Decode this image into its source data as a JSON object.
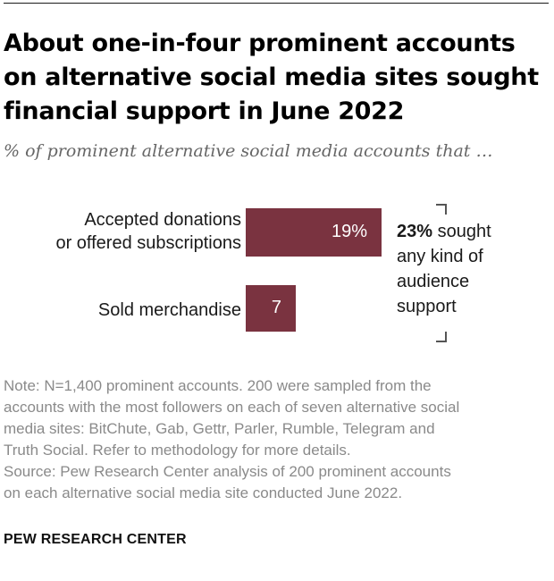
{
  "header": {
    "title": "About one-in-four prominent accounts on alternative social media sites sought financial support in June 2022",
    "subtitle": "% of prominent alternative social media accounts that …"
  },
  "chart_data": {
    "type": "bar",
    "orientation": "horizontal",
    "categories": [
      "Accepted donations or offered subscriptions",
      "Sold merchandise"
    ],
    "category_lines": [
      [
        "Accepted donations",
        "or offered subscriptions"
      ],
      [
        "Sold merchandise"
      ]
    ],
    "values": [
      19,
      7
    ],
    "value_labels": [
      "19%",
      "7"
    ],
    "xlim": [
      0,
      19
    ],
    "color": "#7a3340",
    "annotation": {
      "bold": "23%",
      "text_lines": [
        " sought",
        "any kind of",
        "audience",
        "support"
      ]
    }
  },
  "footer": {
    "note_lines": [
      "Note: N=1,400 prominent accounts. 200 were sampled from the",
      "accounts with the most followers on each of seven alternative social",
      "media sites: BitChute, Gab, Gettr, Parler, Rumble, Telegram and",
      "Truth Social. Refer to methodology for more details."
    ],
    "source_lines": [
      "Source: Pew Research Center analysis of 200 prominent accounts",
      "on each alternative social media site conducted June 2022."
    ],
    "brand": "PEW RESEARCH CENTER"
  }
}
